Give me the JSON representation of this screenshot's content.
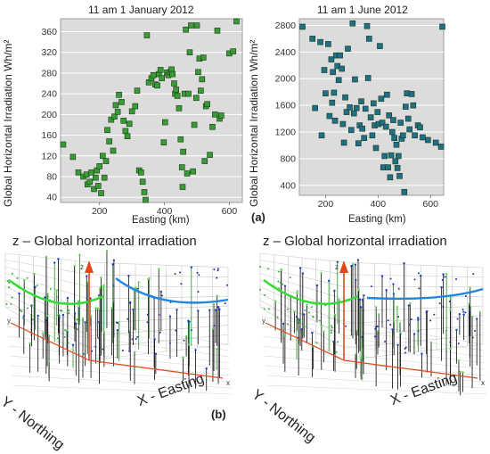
{
  "figure": {
    "panel_a_label": "(a)",
    "panel_b_label": "(b)",
    "axis_z_letter": "z",
    "axis_x_letter": "x",
    "axis_y_letter": "y"
  },
  "colors": {
    "jan_marker": "#3a9a35",
    "jun_marker": "#1f6f86",
    "green_curve": "#33dd33",
    "blue_curve": "#2288dd",
    "axis_red": "#e0481a"
  },
  "chart_data": [
    {
      "type": "scatter",
      "title": "11 am 1 January 2012",
      "xlabel": "Easting (km)",
      "ylabel": "Global Horizontal Irradiation Wh/m²",
      "xlim": [
        80,
        640
      ],
      "ylim": [
        30,
        385
      ],
      "x_ticks": [
        200,
        400,
        600
      ],
      "y_ticks": [
        40,
        80,
        120,
        160,
        200,
        240,
        280,
        320,
        360
      ],
      "grid": "horizontal",
      "points": [
        [
          88,
          142
        ],
        [
          118,
          118
        ],
        [
          135,
          88
        ],
        [
          150,
          80
        ],
        [
          160,
          84
        ],
        [
          163,
          65
        ],
        [
          170,
          70
        ],
        [
          175,
          88
        ],
        [
          183,
          56
        ],
        [
          188,
          78
        ],
        [
          192,
          92
        ],
        [
          196,
          62
        ],
        [
          200,
          100
        ],
        [
          205,
          48
        ],
        [
          210,
          120
        ],
        [
          215,
          78
        ],
        [
          220,
          110
        ],
        [
          224,
          170
        ],
        [
          230,
          148
        ],
        [
          236,
          190
        ],
        [
          242,
          130
        ],
        [
          246,
          196
        ],
        [
          250,
          218
        ],
        [
          256,
          205
        ],
        [
          260,
          238
        ],
        [
          268,
          224
        ],
        [
          274,
          188
        ],
        [
          280,
          168
        ],
        [
          286,
          158
        ],
        [
          292,
          182
        ],
        [
          300,
          206
        ],
        [
          310,
          216
        ],
        [
          316,
          246
        ],
        [
          322,
          92
        ],
        [
          328,
          88
        ],
        [
          333,
          70
        ],
        [
          338,
          50
        ],
        [
          342,
          35
        ],
        [
          346,
          353
        ],
        [
          352,
          262
        ],
        [
          360,
          270
        ],
        [
          366,
          276
        ],
        [
          372,
          258
        ],
        [
          378,
          256
        ],
        [
          383,
          278
        ],
        [
          388,
          286
        ],
        [
          392,
          270
        ],
        [
          398,
          146
        ],
        [
          402,
          185
        ],
        [
          408,
          281
        ],
        [
          412,
          276
        ],
        [
          418,
          282
        ],
        [
          422,
          287
        ],
        [
          425,
          278
        ],
        [
          430,
          260
        ],
        [
          433,
          240
        ],
        [
          436,
          248
        ],
        [
          440,
          236
        ],
        [
          445,
          212
        ],
        [
          450,
          152
        ],
        [
          454,
          98
        ],
        [
          456,
          60
        ],
        [
          458,
          128
        ],
        [
          462,
          240
        ],
        [
          466,
          364
        ],
        [
          470,
          86
        ],
        [
          474,
          240
        ],
        [
          478,
          320
        ],
        [
          482,
          372
        ],
        [
          488,
          90
        ],
        [
          492,
          180
        ],
        [
          498,
          232
        ],
        [
          500,
          372
        ],
        [
          504,
          282
        ],
        [
          508,
          308
        ],
        [
          512,
          246
        ],
        [
          516,
          268
        ],
        [
          520,
          310
        ],
        [
          524,
          110
        ],
        [
          528,
          216
        ],
        [
          532,
          220
        ],
        [
          540,
          122
        ],
        [
          548,
          176
        ],
        [
          556,
          200
        ],
        [
          563,
          362
        ],
        [
          570,
          192
        ],
        [
          575,
          198
        ],
        [
          600,
          318
        ],
        [
          612,
          322
        ],
        [
          622,
          380
        ]
      ]
    },
    {
      "type": "scatter",
      "title": "11 am 1 June 2012",
      "xlabel": "Easting (km)",
      "ylabel": "",
      "xlim": [
        100,
        650
      ],
      "ylim": [
        250,
        2900
      ],
      "x_ticks": [
        200,
        400,
        600
      ],
      "y_ticks": [
        400,
        800,
        1200,
        1600,
        2000,
        2400,
        2800
      ],
      "grid": "horizontal",
      "points": [
        [
          112,
          2780
        ],
        [
          150,
          2600
        ],
        [
          160,
          1560
        ],
        [
          180,
          2550
        ],
        [
          185,
          1150
        ],
        [
          195,
          2130
        ],
        [
          200,
          1780
        ],
        [
          210,
          2520
        ],
        [
          215,
          1440
        ],
        [
          222,
          2290
        ],
        [
          225,
          1640
        ],
        [
          228,
          2100
        ],
        [
          232,
          1790
        ],
        [
          236,
          1370
        ],
        [
          240,
          2350
        ],
        [
          245,
          2190
        ],
        [
          250,
          1980
        ],
        [
          255,
          2350
        ],
        [
          262,
          2150
        ],
        [
          266,
          1320
        ],
        [
          270,
          1040
        ],
        [
          275,
          1720
        ],
        [
          280,
          1500
        ],
        [
          285,
          2450
        ],
        [
          292,
          1570
        ],
        [
          298,
          1230
        ],
        [
          303,
          2830
        ],
        [
          308,
          1480
        ],
        [
          312,
          1990
        ],
        [
          318,
          1560
        ],
        [
          325,
          1030
        ],
        [
          330,
          1300
        ],
        [
          336,
          1660
        ],
        [
          340,
          1250
        ],
        [
          347,
          1110
        ],
        [
          352,
          1550
        ],
        [
          358,
          2790
        ],
        [
          362,
          2010
        ],
        [
          366,
          2600
        ],
        [
          372,
          1420
        ],
        [
          378,
          1150
        ],
        [
          383,
          1630
        ],
        [
          387,
          1300
        ],
        [
          392,
          960
        ],
        [
          398,
          1500
        ],
        [
          402,
          1320
        ],
        [
          407,
          2490
        ],
        [
          412,
          1700
        ],
        [
          416,
          1340
        ],
        [
          420,
          670
        ],
        [
          425,
          840
        ],
        [
          430,
          1280
        ],
        [
          434,
          1760
        ],
        [
          438,
          670
        ],
        [
          442,
          1450
        ],
        [
          446,
          520
        ],
        [
          450,
          850
        ],
        [
          454,
          1200
        ],
        [
          458,
          1380
        ],
        [
          462,
          1110
        ],
        [
          466,
          760
        ],
        [
          470,
          1010
        ],
        [
          474,
          660
        ],
        [
          478,
          840
        ],
        [
          482,
          540
        ],
        [
          486,
          1340
        ],
        [
          490,
          1100
        ],
        [
          495,
          1150
        ],
        [
          500,
          300
        ],
        [
          505,
          1580
        ],
        [
          510,
          1780
        ],
        [
          515,
          1400
        ],
        [
          520,
          1240
        ],
        [
          528,
          1770
        ],
        [
          534,
          1600
        ],
        [
          540,
          1150
        ],
        [
          552,
          1300
        ],
        [
          560,
          1270
        ],
        [
          570,
          1120
        ],
        [
          590,
          1080
        ],
        [
          620,
          1040
        ],
        [
          640,
          980
        ],
        [
          645,
          2780
        ]
      ]
    }
  ],
  "plots3d": [
    {
      "title": "z – Global horizontal irradiation",
      "y_axis_label": "Y - Northing",
      "x_axis_label": "X  - Easting"
    },
    {
      "title": "z – Global horizontal irradiation",
      "y_axis_label": "Y - Northing",
      "x_axis_label": "X  - Easting"
    }
  ]
}
